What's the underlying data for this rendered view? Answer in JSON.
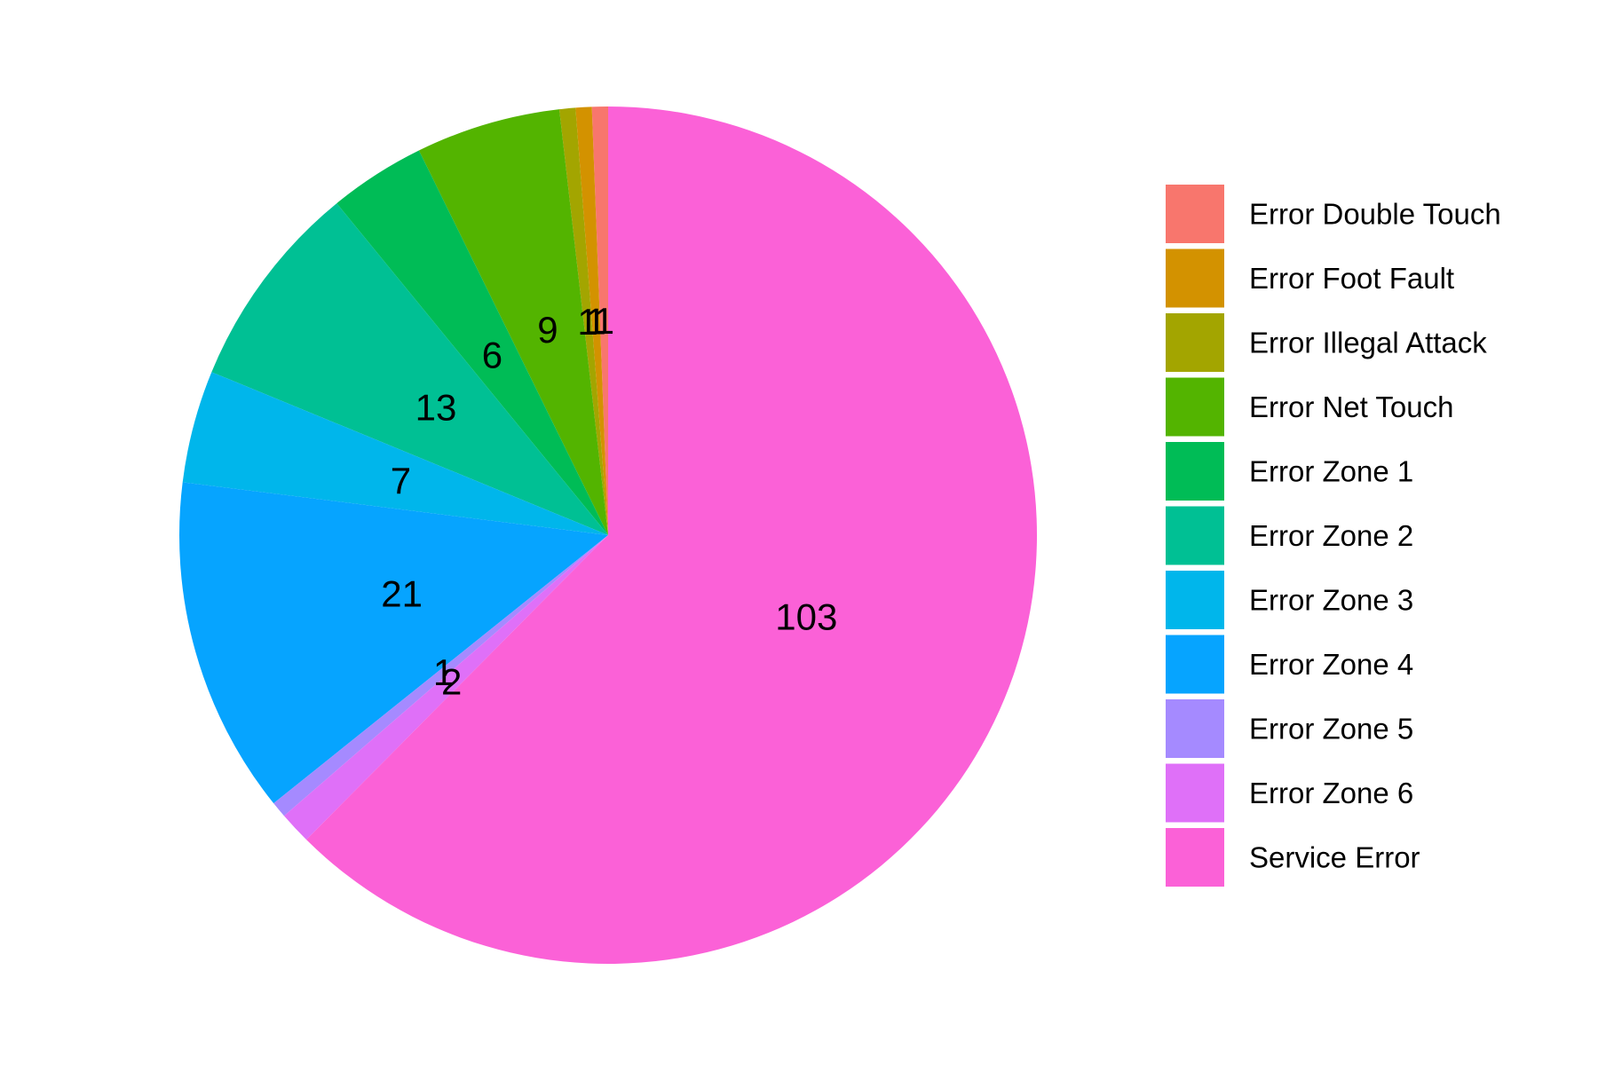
{
  "chart_data": {
    "type": "pie",
    "title": "",
    "direction": "counterclockwise",
    "start": "top",
    "legend_position": "right",
    "slices": [
      {
        "label": "Error Double Touch",
        "value": 1,
        "color": "#F8766D"
      },
      {
        "label": "Error Foot Fault",
        "value": 1,
        "color": "#D39200"
      },
      {
        "label": "Error Illegal Attack",
        "value": 1,
        "color": "#A3A500"
      },
      {
        "label": "Error Net Touch",
        "value": 9,
        "color": "#53B400"
      },
      {
        "label": "Error Zone 1",
        "value": 6,
        "color": "#00BC56"
      },
      {
        "label": "Error Zone 2",
        "value": 13,
        "color": "#00C094"
      },
      {
        "label": "Error Zone 3",
        "value": 7,
        "color": "#00B6EB"
      },
      {
        "label": "Error Zone 4",
        "value": 21,
        "color": "#06A4FF"
      },
      {
        "label": "Error Zone 5",
        "value": 1,
        "color": "#A58AFF"
      },
      {
        "label": "Error Zone 6",
        "value": 2,
        "color": "#DF70F8"
      },
      {
        "label": "Service Error",
        "value": 103,
        "color": "#FB61D7"
      }
    ]
  }
}
